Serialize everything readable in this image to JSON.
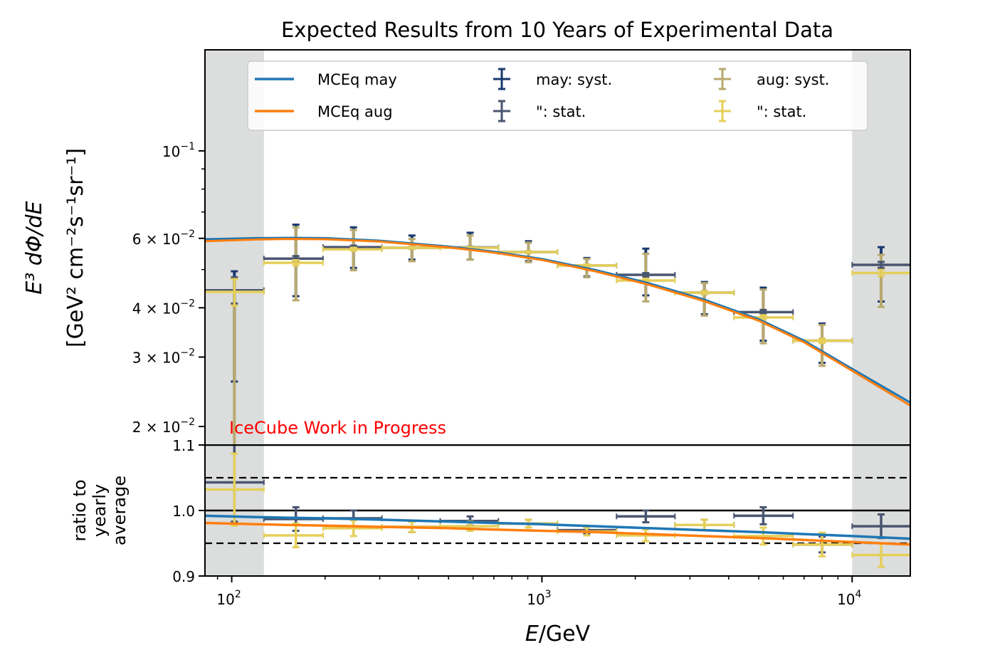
{
  "chart_data": {
    "type": "line",
    "title": "Expected Results from 10 Years of Experimental Data",
    "annotation": "IceCube Work in Progress",
    "xlabel": "E/GeV",
    "xscale": "log",
    "xlim": [
      82,
      15400
    ],
    "x_ticks": [
      {
        "value": 100,
        "base": "10",
        "exp": "2"
      },
      {
        "value": 1000,
        "base": "10",
        "exp": "3"
      },
      {
        "value": 10000,
        "base": "10",
        "exp": "4"
      }
    ],
    "shaded_regions_x": [
      [
        82,
        127
      ],
      [
        10000,
        15400
      ]
    ],
    "main_panel": {
      "ylabel_line1": "E³ dΦ/dE",
      "ylabel_line2": "[GeV² cm⁻²s⁻¹sr⁻¹]",
      "yscale": "log",
      "ylim": [
        0.01795,
        0.1804
      ],
      "y_ticks": [
        {
          "value": 0.1,
          "mant": "",
          "exp": "−1"
        },
        {
          "value": 0.06,
          "mant": "6 × ",
          "exp": "−2"
        },
        {
          "value": 0.04,
          "mant": "4 × ",
          "exp": "−2"
        },
        {
          "value": 0.03,
          "mant": "3 × ",
          "exp": "−2"
        },
        {
          "value": 0.02,
          "mant": "2 × ",
          "exp": "−2"
        }
      ]
    },
    "ratio_panel": {
      "ylabel_lines": [
        "ratio to",
        "yearly",
        "average"
      ],
      "ylim": [
        0.9,
        1.1
      ],
      "y_ticks": [
        "0.9",
        "1.0",
        "1.1"
      ],
      "y_tick_values": [
        0.9,
        1.0,
        1.1
      ],
      "solid_lines": [
        1.0,
        1.1
      ],
      "dashed_lines": [
        0.95,
        1.05
      ]
    },
    "bins": {
      "edges": [
        82,
        127,
        197,
        305,
        470,
        724,
        1122,
        1740,
        2685,
        4161,
        6450,
        10000,
        15400
      ],
      "centers": [
        102,
        161,
        247,
        381,
        587,
        905,
        1395,
        2162,
        3340,
        5170,
        8000,
        12400
      ]
    },
    "series": [
      {
        "name": "MCEq may",
        "kind": "model",
        "color": "#1f77b4",
        "x": [
          82,
          120,
          150,
          200,
          300,
          500,
          700,
          1000,
          1500,
          2200,
          3300,
          5000,
          7000,
          10000,
          15400
        ],
        "y": [
          0.0597,
          0.0601,
          0.0602,
          0.0601,
          0.0592,
          0.0572,
          0.0555,
          0.0532,
          0.0498,
          0.0462,
          0.0421,
          0.0374,
          0.033,
          0.028,
          0.023
        ],
        "ratio": [
          0.992,
          0.99,
          0.989,
          0.988,
          0.986,
          0.983,
          0.981,
          0.979,
          0.976,
          0.973,
          0.97,
          0.967,
          0.964,
          0.961,
          0.957
        ]
      },
      {
        "name": "MCEq aug",
        "kind": "model",
        "color": "#ff7f0e",
        "x": [
          82,
          120,
          150,
          200,
          300,
          500,
          700,
          1000,
          1500,
          2200,
          3300,
          5000,
          7000,
          10000,
          15400
        ],
        "y": [
          0.059,
          0.0596,
          0.0598,
          0.0597,
          0.0589,
          0.0569,
          0.0552,
          0.0529,
          0.0494,
          0.0458,
          0.0417,
          0.0371,
          0.0327,
          0.0277,
          0.0226
        ],
        "ratio": [
          0.981,
          0.979,
          0.978,
          0.977,
          0.975,
          0.973,
          0.971,
          0.969,
          0.967,
          0.964,
          0.961,
          0.958,
          0.955,
          0.952,
          0.948
        ]
      },
      {
        "name": "may: syst.",
        "kind": "errorbar-syst",
        "color": "#1a3a6e",
        "y": [
          0.0443,
          0.0533,
          0.057,
          0.0568,
          0.0569,
          0.0554,
          0.0512,
          0.0485,
          0.0437,
          0.039,
          0.033,
          0.0514
        ],
        "y_low": [
          0.026,
          0.0428,
          0.0505,
          0.053,
          0.053,
          0.0525,
          0.048,
          0.043,
          0.0385,
          0.033,
          0.029,
          0.0415
        ],
        "y_high": [
          0.0495,
          0.065,
          0.064,
          0.061,
          0.062,
          0.059,
          0.0535,
          0.0565,
          0.0465,
          0.045,
          0.0365,
          0.057
        ]
      },
      {
        "name": "\": stat.",
        "kind": "errorbar-stat",
        "color": "#4a5570",
        "y": [
          0.0443,
          0.0533,
          0.057,
          0.0568,
          0.0569,
          0.0554,
          0.0512,
          0.0485,
          0.0437,
          0.039,
          0.033,
          0.0514
        ],
        "y_low": [
          0.041,
          0.0525,
          0.0565,
          0.0565,
          0.0566,
          0.0551,
          0.0509,
          0.048,
          0.0433,
          0.0385,
          0.0326,
          0.0505
        ],
        "y_high": [
          0.0478,
          0.0541,
          0.0575,
          0.0571,
          0.0572,
          0.0557,
          0.0515,
          0.049,
          0.0441,
          0.0395,
          0.0334,
          0.0523
        ],
        "ratio": [
          1.043,
          0.987,
          0.988,
          0.975,
          0.984,
          0.98,
          0.97,
          0.991,
          0.978,
          0.992,
          0.948,
          0.976
        ],
        "ratio_err": [
          0.06,
          0.018,
          0.012,
          0.008,
          0.007,
          0.006,
          0.006,
          0.009,
          0.008,
          0.013,
          0.012,
          0.018
        ]
      },
      {
        "name": "aug: syst.",
        "kind": "errorbar-syst",
        "color": "#b8a96e",
        "y": [
          0.0439,
          0.052,
          0.0563,
          0.0568,
          0.0568,
          0.0554,
          0.0512,
          0.0469,
          0.0437,
          0.0378,
          0.033,
          0.049
        ],
        "y_low": [
          0.0175,
          0.0418,
          0.0498,
          0.0525,
          0.053,
          0.0522,
          0.0478,
          0.0415,
          0.0382,
          0.0325,
          0.0285,
          0.0402
        ],
        "y_high": [
          0.0475,
          0.064,
          0.063,
          0.0598,
          0.061,
          0.0585,
          0.0532,
          0.0548,
          0.0462,
          0.0445,
          0.0362,
          0.0545
        ]
      },
      {
        "name": "\": stat.",
        "kind": "errorbar-stat",
        "color": "#e5cf5a",
        "y": [
          0.0439,
          0.052,
          0.0563,
          0.0568,
          0.0568,
          0.0554,
          0.0512,
          0.0469,
          0.0437,
          0.0378,
          0.033,
          0.049
        ],
        "y_low": [
          0.0405,
          0.0512,
          0.0558,
          0.0565,
          0.0565,
          0.0551,
          0.0509,
          0.0464,
          0.0433,
          0.0373,
          0.0326,
          0.0481
        ],
        "y_high": [
          0.0473,
          0.0528,
          0.0568,
          0.0571,
          0.0571,
          0.0557,
          0.0515,
          0.0474,
          0.0441,
          0.0383,
          0.0334,
          0.0499
        ],
        "ratio": [
          1.032,
          0.962,
          0.973,
          0.975,
          0.976,
          0.98,
          0.968,
          0.962,
          0.978,
          0.961,
          0.948,
          0.932
        ],
        "ratio_err": [
          0.055,
          0.018,
          0.012,
          0.008,
          0.007,
          0.006,
          0.006,
          0.009,
          0.008,
          0.013,
          0.018,
          0.018
        ]
      }
    ],
    "legend": {
      "placement": "top-center",
      "columns": 3,
      "entries": [
        {
          "label": "MCEq may",
          "type": "line",
          "color": "#1f77b4"
        },
        {
          "label": "MCEq aug",
          "type": "line",
          "color": "#ff7f0e"
        },
        {
          "label": "may: syst.",
          "type": "errorbar",
          "color": "#1a3a6e"
        },
        {
          "label": "\": stat.",
          "type": "errorbar",
          "color": "#4a5570"
        },
        {
          "label": "aug: syst.",
          "type": "errorbar",
          "color": "#b8a96e"
        },
        {
          "label": "\": stat.",
          "type": "errorbar",
          "color": "#e5cf5a"
        }
      ]
    },
    "colors": {
      "shade": "#dcdddd",
      "annotation": "#ff0000"
    }
  }
}
